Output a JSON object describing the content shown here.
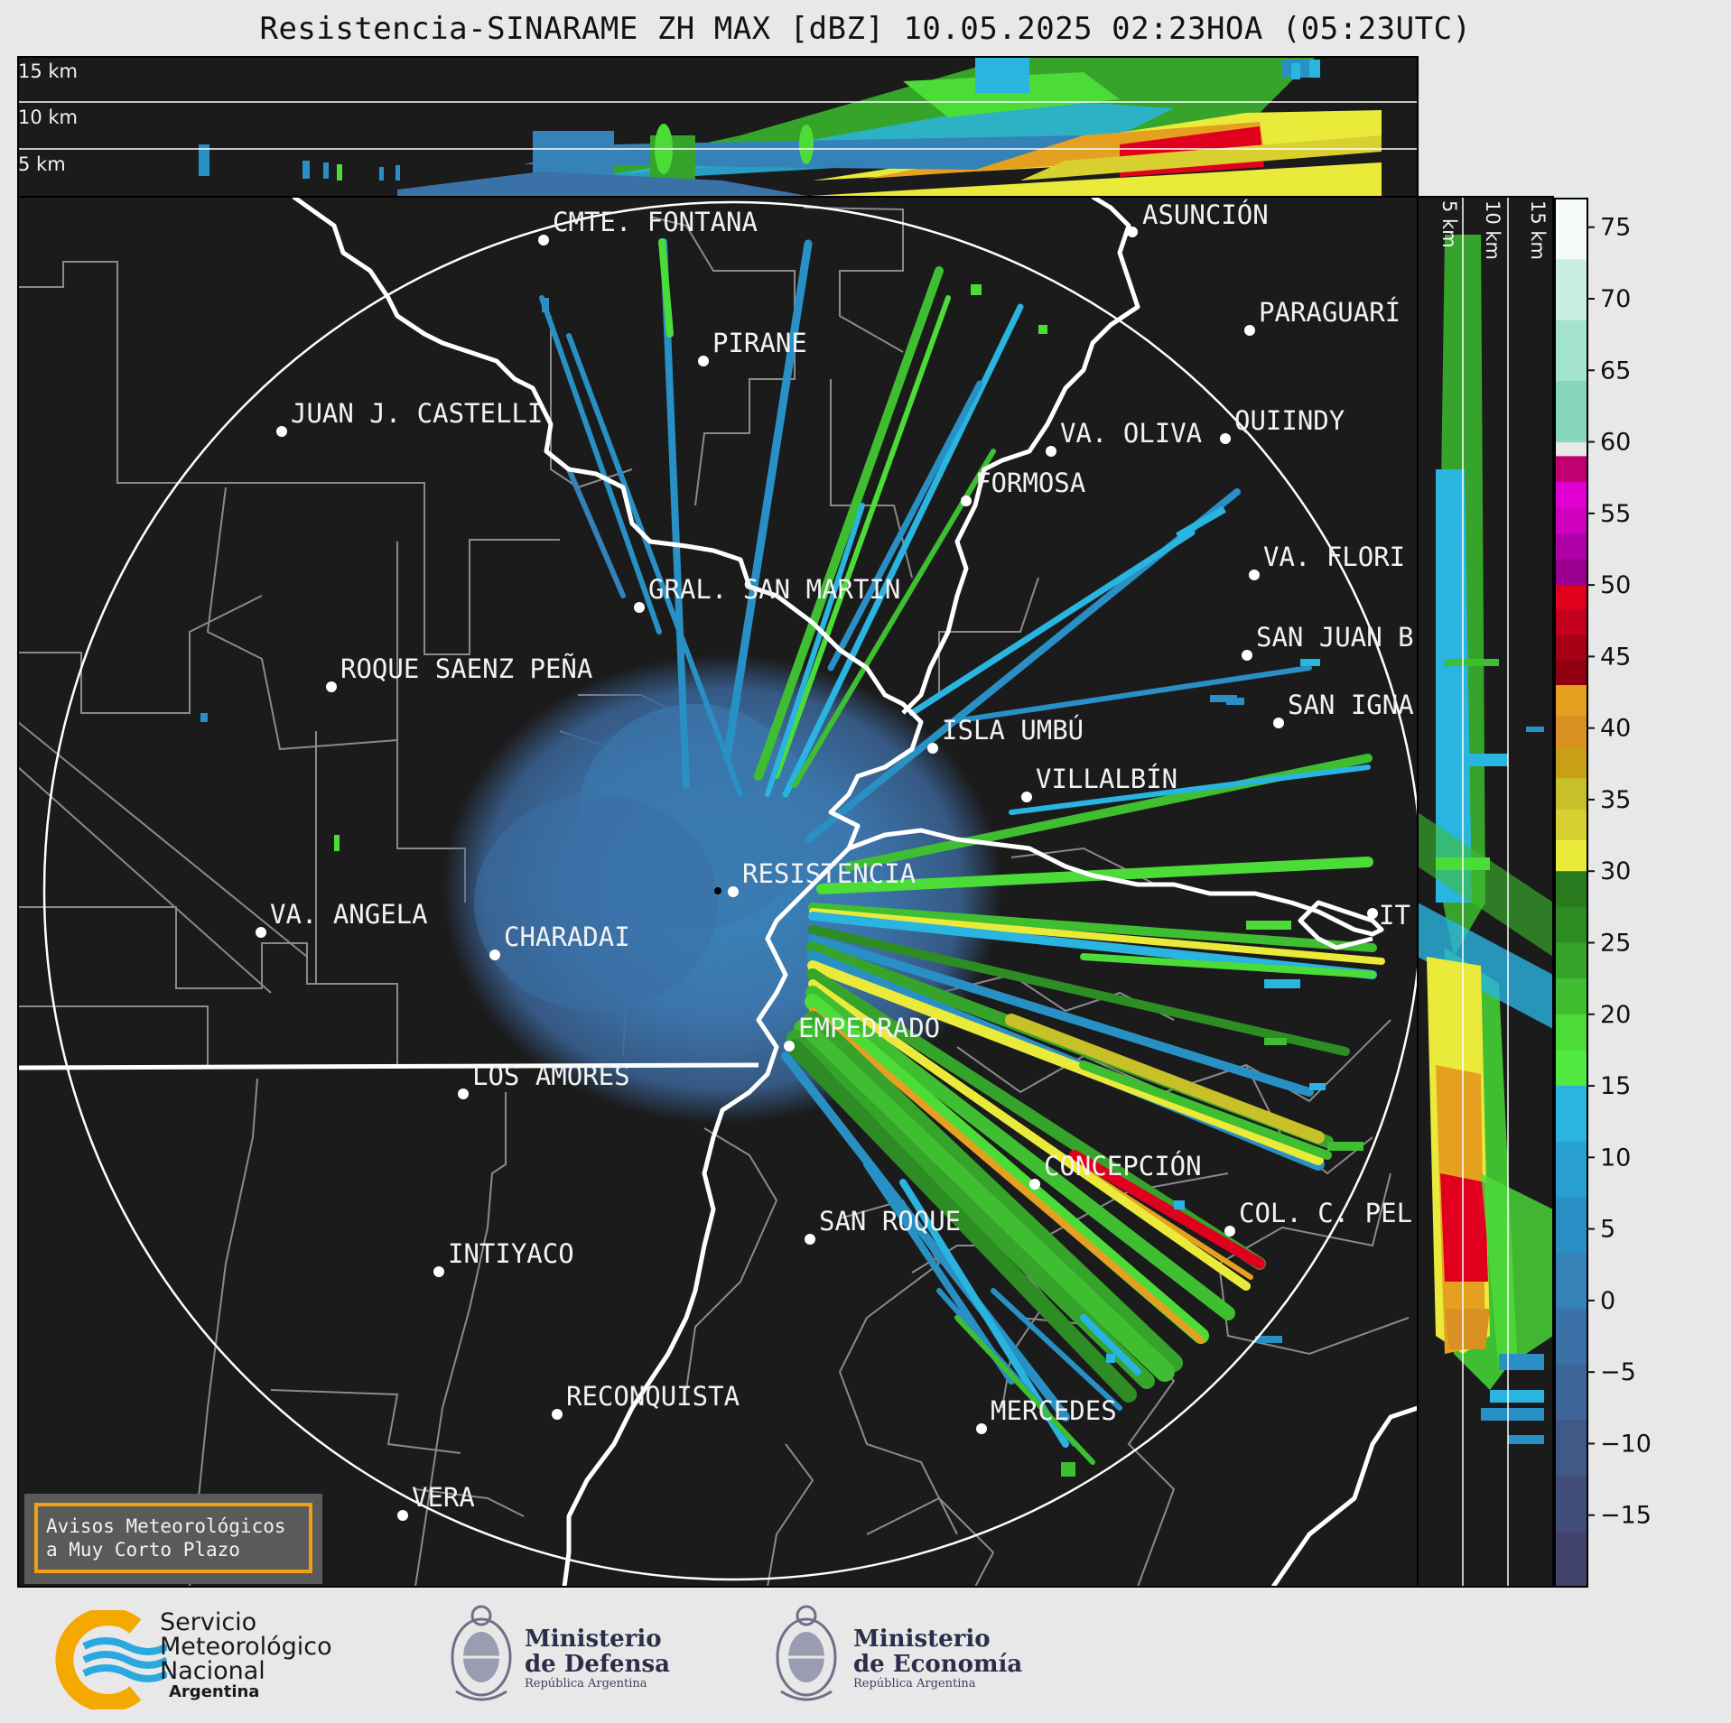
{
  "header": {
    "title": "Resistencia-SINARAME ZH MAX [dBZ] 10.05.2025 02:23HOA (05:23UTC)"
  },
  "top_panel": {
    "height_labels": [
      "15 km",
      "10 km",
      "5 km"
    ]
  },
  "side_panel": {
    "height_labels": [
      "5 km",
      "10 km",
      "15 km"
    ]
  },
  "colorbar": {
    "unit": "dBZ",
    "ticks": [
      "75",
      "70",
      "65",
      "60",
      "55",
      "50",
      "45",
      "40",
      "35",
      "30",
      "25",
      "20",
      "15",
      "10",
      "5",
      "0",
      "−5",
      "−10",
      "−15"
    ],
    "range": [
      -20,
      77
    ],
    "bands": [
      {
        "from": 60,
        "to": 77,
        "colors": [
          "#f4fbf8",
          "#c8efe2",
          "#a4e3ce",
          "#86d7bc"
        ]
      },
      {
        "from": 50,
        "to": 59,
        "colors": [
          "#c0006e",
          "#e000d2",
          "#d000c0",
          "#b000a8",
          "#9a0090"
        ]
      },
      {
        "from": 43,
        "to": 50,
        "colors": [
          "#e0001e",
          "#c4001c",
          "#a80014",
          "#900010"
        ]
      },
      {
        "from": 30,
        "to": 43,
        "colors": [
          "#e6a020",
          "#d89020",
          "#c8a018",
          "#c8c028",
          "#d8d030",
          "#eaea3a"
        ]
      },
      {
        "from": 15,
        "to": 30,
        "colors": [
          "#2a7a20",
          "#2e8c24",
          "#36a42a",
          "#3ebe30",
          "#4cdc38",
          "#50ea40"
        ]
      },
      {
        "from": -20,
        "to": 15,
        "colors": [
          "#2ab4e0",
          "#28a0d0",
          "#2890c4",
          "#3482b8",
          "#3a72a8",
          "#3e6698",
          "#405a88",
          "#414e7a",
          "#42446c"
        ]
      }
    ]
  },
  "map": {
    "radar_name": "RESISTENCIA",
    "cities": [
      {
        "name": "CMTE. FONTANA",
        "dot": [
          602,
          266
        ],
        "label": [
          612,
          256
        ]
      },
      {
        "name": "ASUNCIÓN",
        "dot": [
          1254,
          257
        ],
        "label": [
          1265,
          248
        ]
      },
      {
        "name": "PIRANE",
        "dot": [
          779,
          400
        ],
        "label": [
          789,
          390
        ]
      },
      {
        "name": "PARAGUARÍ",
        "dot": [
          1384,
          366
        ],
        "label": [
          1394,
          356
        ]
      },
      {
        "name": "JUAN J. CASTELLI",
        "dot": [
          312,
          478
        ],
        "label": [
          322,
          468
        ]
      },
      {
        "name": "VA. OLIVA",
        "dot": [
          1164,
          500
        ],
        "label": [
          1174,
          490
        ]
      },
      {
        "name": "QUIINDY",
        "dot": [
          1357,
          486
        ],
        "label": [
          1367,
          476
        ]
      },
      {
        "name": "FORMOSA",
        "dot": [
          1070,
          555
        ],
        "label": [
          1080,
          545
        ]
      },
      {
        "name": "VA. FLORI",
        "dot": [
          1389,
          637
        ],
        "label": [
          1399,
          627
        ]
      },
      {
        "name": "GRAL. SAN MARTIN",
        "dot": [
          708,
          673
        ],
        "label": [
          718,
          663
        ]
      },
      {
        "name": "SAN JUAN B",
        "dot": [
          1381,
          726
        ],
        "label": [
          1391,
          716
        ]
      },
      {
        "name": "ROQUE SAENZ PEÑA",
        "dot": [
          367,
          761
        ],
        "label": [
          377,
          751
        ]
      },
      {
        "name": "SAN IGNA",
        "dot": [
          1416,
          801
        ],
        "label": [
          1426,
          791
        ]
      },
      {
        "name": "ISLA UMBÚ",
        "dot": [
          1033,
          829
        ],
        "label": [
          1043,
          819
        ]
      },
      {
        "name": "VILLALBÍN",
        "dot": [
          1137,
          883
        ],
        "label": [
          1147,
          873
        ]
      },
      {
        "name": "RESISTENCIA",
        "dot": [
          812,
          988
        ],
        "label": [
          822,
          978
        ]
      },
      {
        "name": "VA. ANGELA",
        "dot": [
          289,
          1033
        ],
        "label": [
          299,
          1023
        ]
      },
      {
        "name": "CHARADAI",
        "dot": [
          548,
          1058
        ],
        "label": [
          558,
          1048
        ]
      },
      {
        "name": "IT",
        "dot": [
          1520,
          1012
        ],
        "label": [
          1527,
          1024
        ]
      },
      {
        "name": "EMPEDRADO",
        "dot": [
          874,
          1159
        ],
        "label": [
          884,
          1149
        ]
      },
      {
        "name": "LOS AMORES",
        "dot": [
          513,
          1212
        ],
        "label": [
          523,
          1202
        ]
      },
      {
        "name": "CONCEPCIÓN",
        "dot": [
          1146,
          1312
        ],
        "label": [
          1156,
          1302
        ]
      },
      {
        "name": "COL. C. PEL",
        "dot": [
          1362,
          1364
        ],
        "label": [
          1372,
          1354
        ]
      },
      {
        "name": "SAN ROQUE",
        "dot": [
          897,
          1373
        ],
        "label": [
          907,
          1363
        ]
      },
      {
        "name": "INTIYACO",
        "dot": [
          486,
          1409
        ],
        "label": [
          496,
          1399
        ]
      },
      {
        "name": "RECONQUISTA",
        "dot": [
          617,
          1567
        ],
        "label": [
          627,
          1557
        ]
      },
      {
        "name": "MERCEDES",
        "dot": [
          1087,
          1583
        ],
        "label": [
          1097,
          1573
        ]
      },
      {
        "name": "VERA",
        "dot": [
          446,
          1679
        ],
        "label": [
          456,
          1669
        ]
      }
    ]
  },
  "notice": {
    "line1": "Avisos Meteorológicos",
    "line2": "a Muy Corto Plazo"
  },
  "footer": {
    "smn": {
      "line1": "Servicio",
      "line2": "Meteorológico",
      "line3": "Nacional",
      "line4": "Argentina"
    },
    "defensa": {
      "line1": "Ministerio",
      "line2": "de Defensa",
      "line3": "República Argentina"
    },
    "economia": {
      "line1": "Ministerio",
      "line2": "de Economía",
      "line3": "República Argentina"
    }
  },
  "colors": {
    "background": "#e8e8e8",
    "panel": "#1b1b1b",
    "boundary": "#ffffff",
    "province": "#8a8a8a",
    "notice_border": "#f0a010",
    "smn_orange": "#f5a800",
    "smn_blue": "#2aa8e0"
  }
}
